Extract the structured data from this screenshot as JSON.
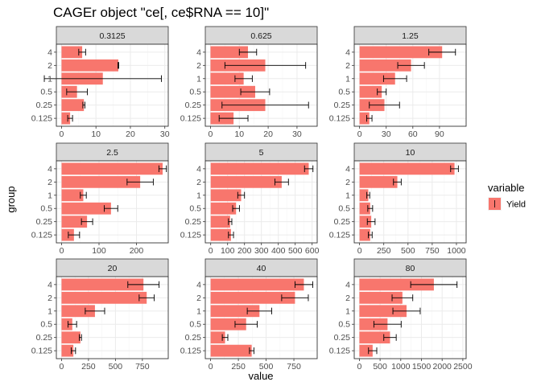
{
  "chart_data": {
    "type": "bar",
    "orientation": "horizontal",
    "title": "CAGEr object \"ce[, ce$RNA == 10]\"",
    "xlabel": "value",
    "ylabel": "group",
    "legend": {
      "title": "variable",
      "entries": [
        {
          "label": "Yield",
          "color": "#F8766D"
        }
      ],
      "position": "right"
    },
    "grid": true,
    "categories": [
      "0.125",
      "0.25",
      "0.5",
      "1",
      "2",
      "4"
    ],
    "facets": [
      {
        "label": "0.3125",
        "xlim": [
          -1.5,
          31
        ],
        "xticks": [
          0,
          10,
          20,
          30
        ],
        "values": [
          2.5,
          6.5,
          4.5,
          12,
          16.5,
          6
        ],
        "errors": [
          0.7,
          0.3,
          3,
          17,
          0.1,
          1
        ]
      },
      {
        "label": "0.625",
        "xlim": [
          -1.8,
          37
        ],
        "xticks": [
          0,
          10,
          20,
          30
        ],
        "values": [
          8,
          19,
          15.5,
          11.5,
          19,
          13
        ],
        "errors": [
          5,
          15,
          5,
          3,
          14,
          3
        ]
      },
      {
        "label": "1.25",
        "xlim": [
          -6,
          120
        ],
        "xticks": [
          0,
          30,
          60,
          90
        ],
        "values": [
          11,
          28,
          25,
          40,
          58,
          93
        ],
        "errors": [
          3,
          17,
          5,
          13,
          15,
          15
        ]
      },
      {
        "label": "2.5",
        "xlim": [
          -14,
          285
        ],
        "xticks": [
          0,
          100,
          200
        ],
        "values": [
          33,
          68,
          132,
          58,
          210,
          270
        ],
        "errors": [
          15,
          15,
          18,
          8,
          35,
          10
        ]
      },
      {
        "label": "5",
        "xlim": [
          -32,
          630
        ],
        "xticks": [
          0,
          100,
          200,
          300,
          400,
          500,
          600
        ],
        "values": [
          120,
          115,
          150,
          180,
          420,
          580
        ],
        "errors": [
          15,
          10,
          20,
          20,
          40,
          25
        ]
      },
      {
        "label": "10",
        "xlim": [
          -55,
          1100
        ],
        "xticks": [
          0,
          250,
          500,
          750,
          1000
        ],
        "values": [
          110,
          120,
          110,
          90,
          390,
          980
        ],
        "errors": [
          20,
          40,
          25,
          15,
          40,
          40
        ]
      },
      {
        "label": "20",
        "xlim": [
          -48,
          990
        ],
        "xticks": [
          0,
          250,
          500,
          750
        ],
        "values": [
          110,
          175,
          100,
          310,
          790,
          760
        ],
        "errors": [
          20,
          10,
          40,
          90,
          70,
          145
        ]
      },
      {
        "label": "40",
        "xlim": [
          -48,
          960
        ],
        "xticks": [
          0,
          250,
          500,
          750
        ],
        "values": [
          370,
          130,
          320,
          440,
          760,
          840
        ],
        "errors": [
          20,
          25,
          100,
          110,
          120,
          80
        ]
      },
      {
        "label": "80",
        "xlim": [
          -125,
          2580
        ],
        "xticks": [
          0,
          500,
          1000,
          1500,
          2000,
          2500
        ],
        "values": [
          320,
          740,
          680,
          1140,
          1040,
          1800
        ],
        "errors": [
          100,
          150,
          330,
          330,
          250,
          560
        ]
      }
    ],
    "tick_labels_x": [
      "0",
      "10",
      "20",
      "30",
      "0",
      "10",
      "20",
      "30",
      "0",
      "30",
      "60",
      "90",
      "0",
      "100",
      "200",
      "0",
      "100",
      "200",
      "300",
      "400",
      "500",
      "600",
      "0",
      "250",
      "500",
      "750",
      "1000",
      "0",
      "250",
      "500",
      "750",
      "0",
      "250",
      "500",
      "750",
      "0",
      "500",
      "1000",
      "1500",
      "2000",
      "2500"
    ]
  },
  "colors": {
    "bar": "#F8766D",
    "strip": "#d9d9d9",
    "grid_major": "#ebebeb",
    "grid_minor": "#f5f5f5",
    "panel_border": "#333333"
  }
}
